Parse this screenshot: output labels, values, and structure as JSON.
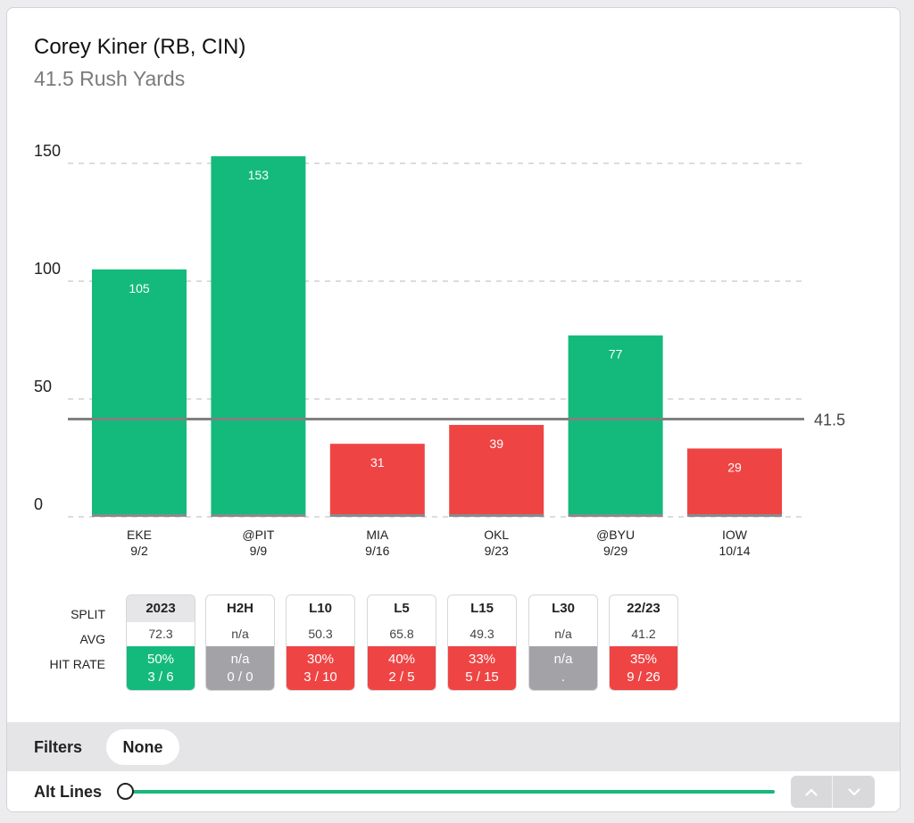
{
  "player": {
    "name": "Corey Kiner (RB, CIN)",
    "prop": "41.5 Rush Yards"
  },
  "chart_data": {
    "type": "bar",
    "title": "Corey Kiner (RB, CIN)",
    "subtitle": "41.5 Rush Yards",
    "categories": [
      "EKE",
      "@PIT",
      "MIA",
      "OKL",
      "@BYU",
      "IOW"
    ],
    "dates": [
      "9/2",
      "9/9",
      "9/16",
      "9/23",
      "9/29",
      "10/14"
    ],
    "values": [
      105,
      153,
      31,
      39,
      77,
      29
    ],
    "line": {
      "value": 41.5,
      "label": "41.5"
    },
    "yticks": [
      0,
      50,
      100,
      150
    ],
    "ylim": [
      0,
      155
    ],
    "grid": true,
    "over_color": "#13ba7c",
    "under_color": "#ef4444"
  },
  "splits": {
    "row_labels": {
      "split": "SPLIT",
      "avg": "AVG",
      "hit_rate": "HIT RATE"
    },
    "columns": [
      {
        "label": "2023",
        "avg": "72.3",
        "pct": "50%",
        "count": "3 / 6",
        "status": "over",
        "selected": true
      },
      {
        "label": "H2H",
        "avg": "n/a",
        "pct": "n/a",
        "count": "0 / 0",
        "status": "none",
        "selected": false
      },
      {
        "label": "L10",
        "avg": "50.3",
        "pct": "30%",
        "count": "3 / 10",
        "status": "under",
        "selected": false
      },
      {
        "label": "L5",
        "avg": "65.8",
        "pct": "40%",
        "count": "2 / 5",
        "status": "under",
        "selected": false
      },
      {
        "label": "L15",
        "avg": "49.3",
        "pct": "33%",
        "count": "5 / 15",
        "status": "under",
        "selected": false
      },
      {
        "label": "L30",
        "avg": "n/a",
        "pct": "n/a",
        "count": ".",
        "status": "none",
        "selected": false
      },
      {
        "label": "22/23",
        "avg": "41.2",
        "pct": "35%",
        "count": "9 / 26",
        "status": "under",
        "selected": false
      }
    ],
    "status_colors": {
      "over": "#13ba7c",
      "under": "#ef4444",
      "none": "#a2a2a7"
    }
  },
  "filters": {
    "label": "Filters",
    "value": "None"
  },
  "alt_lines": {
    "label": "Alt Lines",
    "slider_value": 0,
    "up_icon": "chevron-up-icon",
    "down_icon": "chevron-down-icon"
  }
}
